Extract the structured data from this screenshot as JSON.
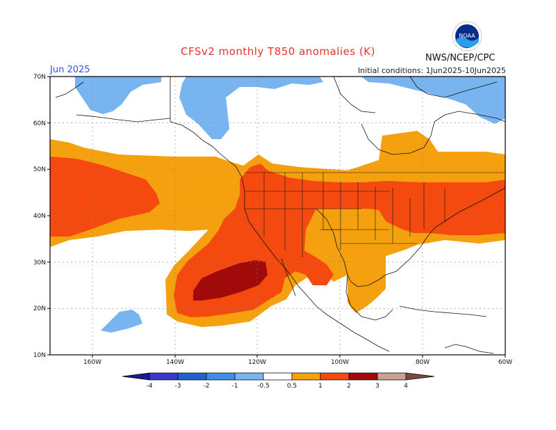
{
  "header": {
    "title": "CFSv2 monthly T850 anomalies (K)",
    "month": "Jun 2025",
    "initial_conditions": "Initial conditions: 1Jun2025-10Jun2025",
    "agency": "NWS/NCEP/CPC",
    "logo_text": "NOAA"
  },
  "axes": {
    "lat_labels": [
      "70N",
      "60N",
      "50N",
      "40N",
      "30N",
      "20N",
      "10N"
    ],
    "lon_labels": [
      "160W",
      "140W",
      "120W",
      "100W",
      "80W",
      "60W"
    ]
  },
  "colorbar": {
    "labels": [
      "-4",
      "-3",
      "-2",
      "-1",
      "-0.5",
      "0.5",
      "1",
      "2",
      "3",
      "4"
    ],
    "colors": {
      "lt-4": "#1a1a8c",
      "-4_-3": "#3a3ac8",
      "-3_-2": "#1f63c8",
      "-2_-1": "#3c8ee6",
      "-1_-0.5": "#78b4f0",
      "-0.5_0.5": "#ffffff",
      "0.5_1": "#f5a00f",
      "1_2": "#f54a0f",
      "2_3": "#f0280a",
      "3_4": "#a00a0a",
      "gt4": "#c8a096"
    }
  }
}
